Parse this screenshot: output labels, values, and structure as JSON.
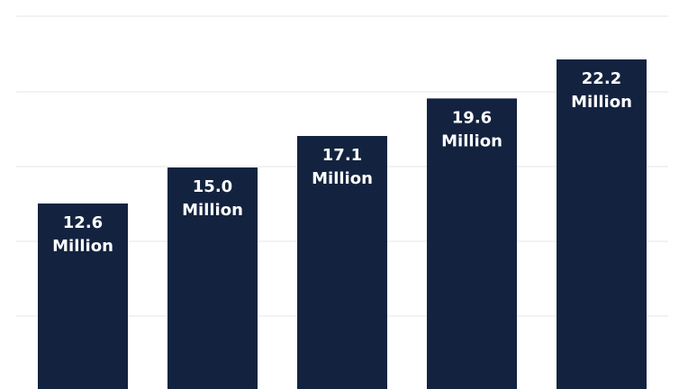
{
  "chart_data": {
    "type": "bar",
    "categories": [
      "",
      "",
      "",
      "",
      ""
    ],
    "values": [
      12.6,
      15.0,
      17.1,
      19.6,
      22.2
    ],
    "data_labels": [
      [
        "12.6",
        "Million"
      ],
      [
        "15.0",
        "Million"
      ],
      [
        "17.1",
        "Million"
      ],
      [
        "19.6",
        "Million"
      ],
      [
        "22.2",
        "Million"
      ]
    ],
    "title": "",
    "xlabel": "",
    "ylabel": "",
    "ylim": [
      0,
      26
    ],
    "grid": true,
    "bar_color": "#13233f",
    "gridline_color": "#e6e6e6"
  }
}
